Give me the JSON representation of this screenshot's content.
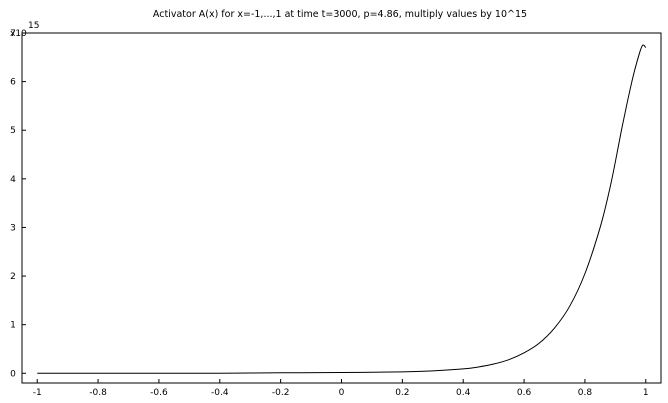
{
  "chart_data": {
    "type": "line",
    "title": "Activator A(x) for x=-1,...,1 at time t=3000, p=4.86, multiply values by 10^15",
    "xlabel": "",
    "ylabel": "",
    "y_multiplier": {
      "base": "x10",
      "exponent": "15"
    },
    "xlim": [
      -1.05,
      1.05
    ],
    "ylim": [
      -0.2,
      7.0
    ],
    "x_ticks": [
      -1,
      -0.8,
      -0.6,
      -0.4,
      -0.2,
      0,
      0.2,
      0.4,
      0.6,
      0.8,
      1
    ],
    "x_tick_labels": [
      "-1",
      "-0.8",
      "-0.6",
      "-0.4",
      "-0.2",
      "0",
      "0.2",
      "0.4",
      "0.6",
      "0.8",
      "1"
    ],
    "y_ticks": [
      0,
      1,
      2,
      3,
      4,
      5,
      6,
      7
    ],
    "y_tick_labels": [
      "0",
      "1",
      "2",
      "3",
      "4",
      "5",
      "6",
      "7"
    ],
    "grid": false,
    "line_color": "#000000",
    "series": [
      {
        "x": [
          -1,
          -0.8,
          -0.6,
          -0.4,
          -0.2,
          0,
          0.1,
          0.2,
          0.3,
          0.4,
          0.45,
          0.5,
          0.55,
          0.6,
          0.65,
          0.7,
          0.75,
          0.8,
          0.85,
          0.88,
          0.9,
          0.92,
          0.94,
          0.96,
          0.98,
          0.99,
          1.0
        ],
        "y": [
          0.0,
          0.0,
          0.0,
          0.0,
          0.01,
          0.015,
          0.02,
          0.03,
          0.05,
          0.09,
          0.13,
          0.19,
          0.28,
          0.42,
          0.62,
          0.93,
          1.38,
          2.05,
          3.0,
          3.75,
          4.35,
          5.0,
          5.6,
          6.15,
          6.6,
          6.75,
          6.7
        ]
      }
    ]
  }
}
